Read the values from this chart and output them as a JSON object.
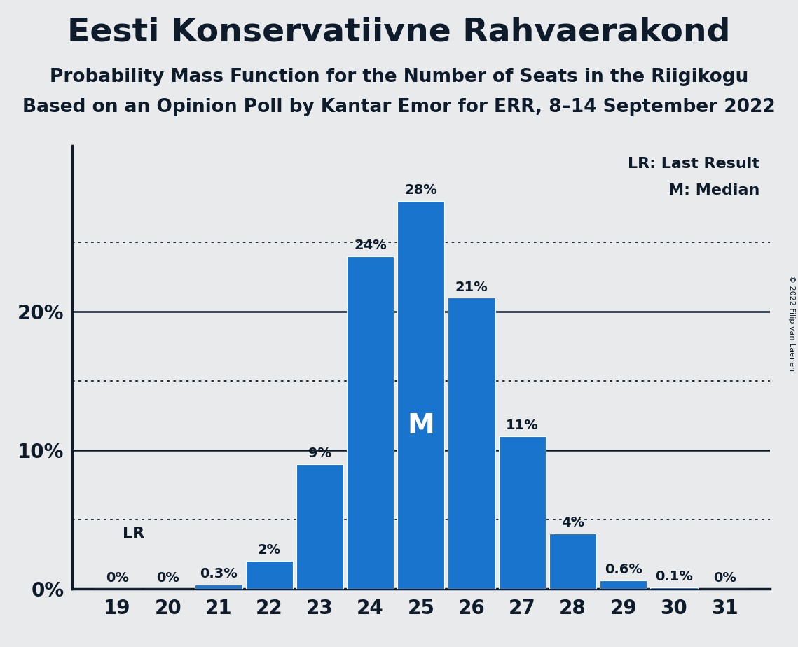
{
  "title": "Eesti Konservatiivne Rahvaerakond",
  "subtitle1": "Probability Mass Function for the Number of Seats in the Riigikogu",
  "subtitle2": "Based on an Opinion Poll by Kantar Emor for ERR, 8–14 September 2022",
  "copyright": "© 2022 Filip van Laenen",
  "seats": [
    19,
    20,
    21,
    22,
    23,
    24,
    25,
    26,
    27,
    28,
    29,
    30,
    31
  ],
  "probabilities": [
    0.0,
    0.0,
    0.3,
    2.0,
    9.0,
    24.0,
    28.0,
    21.0,
    11.0,
    4.0,
    0.6,
    0.1,
    0.0
  ],
  "bar_color": "#1874CD",
  "background_color": "#e8eaec",
  "text_color": "#0d1b2a",
  "lr_value": 5.0,
  "median_seat": 25,
  "legend_lr": "LR: Last Result",
  "legend_m": "M: Median",
  "ylabel_ticks": [
    0,
    10,
    20
  ],
  "dotted_lines": [
    5,
    15,
    25
  ],
  "ylim": [
    0,
    32
  ],
  "bar_labels": [
    "0%",
    "0%",
    "0.3%",
    "2%",
    "9%",
    "24%",
    "28%",
    "21%",
    "11%",
    "4%",
    "0.6%",
    "0.1%",
    "0%"
  ]
}
